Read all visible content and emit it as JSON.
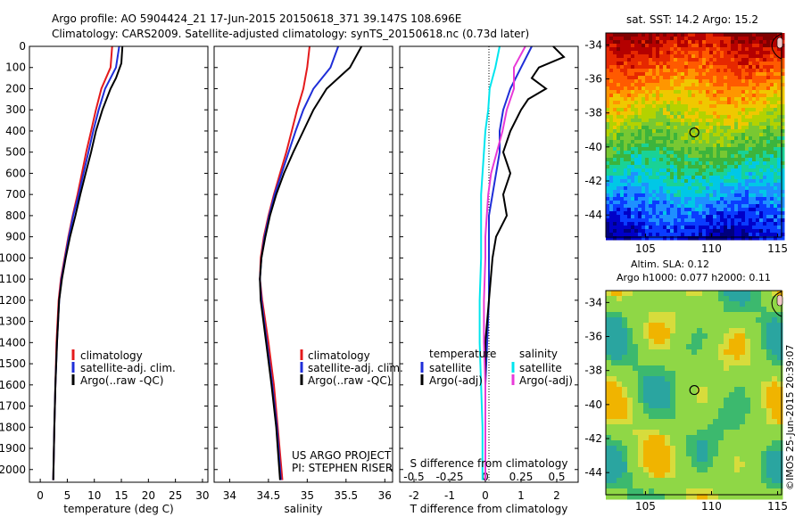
{
  "figure": {
    "title_line1": "Argo profile: AO 5904424_21 17-Jun-2015 20150618_371 39.147S 108.696E",
    "title_line2": "Climatology: CARS2009. Satellite-adjusted climatology: synTS_20150618.nc (0.73d later)",
    "project_line1": "US ARGO PROJECT",
    "project_line2": "PI: STEPHEN RISER",
    "timestamp": "©IMOS 25-Jun-2015 20:39:07",
    "sst_title": "sat. SST: 14.2 Argo: 15.2",
    "sla_title_line1": "Altim. SLA: 0.12",
    "sla_title_line2": "Argo h1000: 0.077 h2000: 0.11"
  },
  "colors": {
    "climatology": "#e41a1c",
    "satellite": "#1f2ed8",
    "argo": "#000000",
    "sal_satellite": "#00e5ee",
    "sal_argo": "#e83ad8"
  },
  "chart_data": [
    {
      "type": "line",
      "xlabel": "temperature (deg C)",
      "ylabel": "",
      "xlim": [
        -2,
        31
      ],
      "ylim": [
        2060,
        0
      ],
      "xticks": [
        0,
        5,
        10,
        15,
        20,
        25,
        30
      ],
      "yticks": [
        0,
        100,
        200,
        300,
        400,
        500,
        600,
        700,
        800,
        900,
        1000,
        1100,
        1200,
        1300,
        1400,
        1500,
        1600,
        1700,
        1800,
        1900,
        2000
      ],
      "legend": [
        "climatology",
        "satellite-adj. clim.",
        "Argo(..raw -QC)"
      ],
      "series": [
        {
          "name": "climatology",
          "depth": [
            0,
            100,
            200,
            300,
            400,
            500,
            600,
            700,
            800,
            900,
            1000,
            1100,
            1200,
            1400,
            1600,
            1800,
            2050
          ],
          "values": [
            13.3,
            13.0,
            11.3,
            10.3,
            9.4,
            8.5,
            7.7,
            6.9,
            6.0,
            5.2,
            4.5,
            3.8,
            3.4,
            3.0,
            2.8,
            2.6,
            2.4
          ]
        },
        {
          "name": "satellite-adj. clim.",
          "depth": [
            0,
            100,
            200,
            300,
            400,
            500,
            600,
            700,
            800,
            900,
            1000,
            1100,
            1200,
            1400,
            1600,
            1800,
            2050
          ],
          "values": [
            14.6,
            14.0,
            12.0,
            10.8,
            9.8,
            8.9,
            8.0,
            7.1,
            6.1,
            5.3,
            4.6,
            3.9,
            3.5,
            3.1,
            2.8,
            2.6,
            2.4
          ]
        },
        {
          "name": "Argo(..raw -QC)",
          "depth": [
            0,
            80,
            150,
            200,
            300,
            400,
            500,
            600,
            700,
            800,
            900,
            1000,
            1100,
            1200,
            1400,
            1600,
            1800,
            2050
          ],
          "values": [
            15.2,
            15.0,
            14.0,
            13.0,
            11.5,
            10.3,
            9.4,
            8.4,
            7.4,
            6.5,
            5.5,
            4.7,
            4.0,
            3.5,
            3.1,
            2.8,
            2.6,
            2.4
          ]
        }
      ]
    },
    {
      "type": "line",
      "xlabel": "salinity",
      "ylabel": "",
      "xlim": [
        33.8,
        36.1
      ],
      "ylim": [
        2060,
        0
      ],
      "xticks": [
        34,
        34.5,
        35,
        35.5,
        36
      ],
      "legend": [
        "climatology",
        "satellite-adj. clim.",
        "Argo(..raw -QC)"
      ],
      "series": [
        {
          "name": "climatology",
          "depth": [
            0,
            100,
            200,
            300,
            400,
            500,
            600,
            700,
            800,
            900,
            1000,
            1100,
            1200,
            1400,
            1600,
            1800,
            2050
          ],
          "values": [
            35.03,
            35.0,
            34.95,
            34.87,
            34.8,
            34.73,
            34.65,
            34.57,
            34.5,
            34.44,
            34.4,
            34.39,
            34.42,
            34.5,
            34.57,
            34.62,
            34.68
          ]
        },
        {
          "name": "satellite-adj. clim.",
          "depth": [
            0,
            100,
            200,
            300,
            400,
            500,
            600,
            700,
            800,
            900,
            1000,
            1100,
            1200,
            1400,
            1600,
            1800,
            2050
          ],
          "values": [
            35.4,
            35.3,
            35.08,
            34.95,
            34.85,
            34.76,
            34.67,
            34.58,
            34.51,
            34.45,
            34.41,
            34.39,
            34.41,
            34.48,
            34.55,
            34.61,
            34.66
          ]
        },
        {
          "name": "Argo(..raw -QC)",
          "depth": [
            0,
            100,
            150,
            200,
            300,
            400,
            500,
            600,
            700,
            800,
            900,
            1000,
            1100,
            1200,
            1400,
            1600,
            1800,
            2050
          ],
          "values": [
            35.7,
            35.55,
            35.4,
            35.25,
            35.08,
            34.95,
            34.82,
            34.7,
            34.6,
            34.52,
            34.46,
            34.41,
            34.39,
            34.4,
            34.47,
            34.54,
            34.6,
            34.65
          ]
        }
      ]
    },
    {
      "type": "line",
      "xlabel": "T difference from climatology",
      "xlabel_top": "S difference from climatology",
      "xlim": [
        -2.4,
        2.6
      ],
      "xlim_salinity": [
        -0.6,
        0.65
      ],
      "ylim": [
        2060,
        0
      ],
      "xticks": [
        -2,
        -1,
        0,
        1,
        2
      ],
      "xticks_salinity": [
        -0.5,
        -0.25,
        0,
        0.25,
        0.5
      ],
      "legend_temperature_title": "temperature",
      "legend_salinity_title": "salinity",
      "legend_labels": [
        "satellite",
        "Argo(-adj)"
      ],
      "series": [
        {
          "name": "satellite",
          "group": "temperature",
          "depth": [
            0,
            100,
            200,
            300,
            400,
            500,
            600,
            700,
            800,
            900,
            1000,
            1200,
            1400,
            1600,
            1800,
            2050
          ],
          "values": [
            1.3,
            1.0,
            0.7,
            0.5,
            0.4,
            0.4,
            0.3,
            0.2,
            0.1,
            0.1,
            0.1,
            0.1,
            0.05,
            0.0,
            0.0,
            0.0
          ]
        },
        {
          "name": "Argo(-adj)",
          "group": "temperature",
          "depth": [
            0,
            50,
            100,
            150,
            200,
            250,
            300,
            400,
            500,
            600,
            700,
            800,
            900,
            1000,
            1200,
            1400,
            1600,
            1800,
            2050
          ],
          "values": [
            1.9,
            2.2,
            1.5,
            1.3,
            1.7,
            1.2,
            1.0,
            0.7,
            0.5,
            0.7,
            0.5,
            0.6,
            0.3,
            0.2,
            0.1,
            0.0,
            0.0,
            0.0,
            0.0
          ]
        },
        {
          "name": "satellite",
          "group": "salinity",
          "depth": [
            0,
            100,
            200,
            300,
            400,
            500,
            600,
            700,
            800,
            900,
            1000,
            1200,
            1400,
            1600,
            1800,
            2050
          ],
          "values": [
            0.1,
            0.07,
            0.03,
            0.02,
            0.0,
            -0.01,
            -0.02,
            -0.03,
            -0.03,
            -0.03,
            -0.03,
            -0.04,
            -0.04,
            -0.03,
            -0.02,
            -0.02
          ]
        },
        {
          "name": "Argo(-adj)",
          "group": "salinity",
          "depth": [
            0,
            100,
            200,
            300,
            400,
            500,
            600,
            700,
            800,
            900,
            1000,
            1200,
            1400,
            1600,
            1800,
            2050
          ],
          "values": [
            0.28,
            0.2,
            0.2,
            0.15,
            0.12,
            0.08,
            0.04,
            0.02,
            0.01,
            0.0,
            0.0,
            -0.01,
            -0.01,
            0.0,
            0.0,
            0.0
          ]
        }
      ]
    },
    {
      "type": "heatmap",
      "title": "sat. SST: 14.2 Argo: 15.2",
      "xlim": [
        102,
        115.3
      ],
      "ylim": [
        -45.3,
        -33.3
      ],
      "xticks": [
        105,
        110,
        115
      ],
      "yticks": [
        -34,
        -36,
        -38,
        -40,
        -42,
        -44
      ],
      "profile_marker": {
        "lon": 108.696,
        "lat": -39.147
      }
    },
    {
      "type": "heatmap",
      "title": "Altim. SLA: 0.12",
      "subtitle": "Argo h1000: 0.077 h2000: 0.11",
      "xlim": [
        102,
        115.3
      ],
      "ylim": [
        -45.3,
        -33.3
      ],
      "xticks": [
        105,
        110,
        115
      ],
      "yticks": [
        -34,
        -36,
        -38,
        -40,
        -42,
        -44
      ],
      "profile_marker": {
        "lon": 108.696,
        "lat": -39.147
      }
    }
  ]
}
